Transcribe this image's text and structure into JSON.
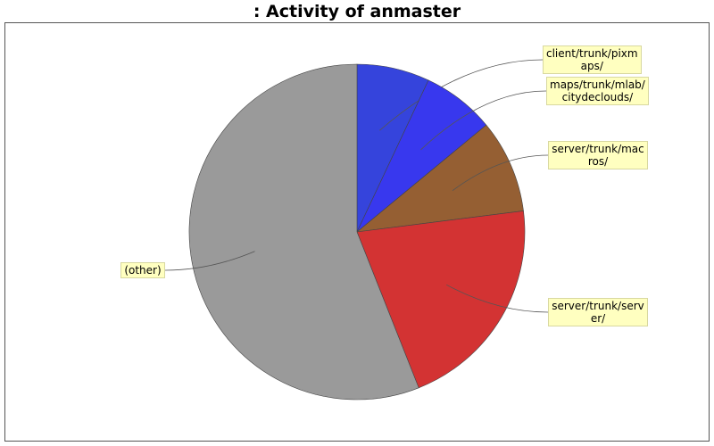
{
  "chart_data": {
    "type": "pie",
    "title": ": Activity of anmaster",
    "slices": [
      {
        "label": "client/trunk/pixm\naps/",
        "value": 7.0,
        "color": "#3544dc"
      },
      {
        "label": "maps/trunk/mlab/\ncitydeclouds/",
        "value": 7.0,
        "color": "#3838ee"
      },
      {
        "label": "server/trunk/mac\nros/",
        "value": 9.0,
        "color": "#955f33"
      },
      {
        "label": "server/trunk/serv\ner/",
        "value": 21.0,
        "color": "#d33333"
      },
      {
        "label": "(other)",
        "value": 56.0,
        "color": "#9a9a9a"
      }
    ],
    "legend": "none"
  }
}
